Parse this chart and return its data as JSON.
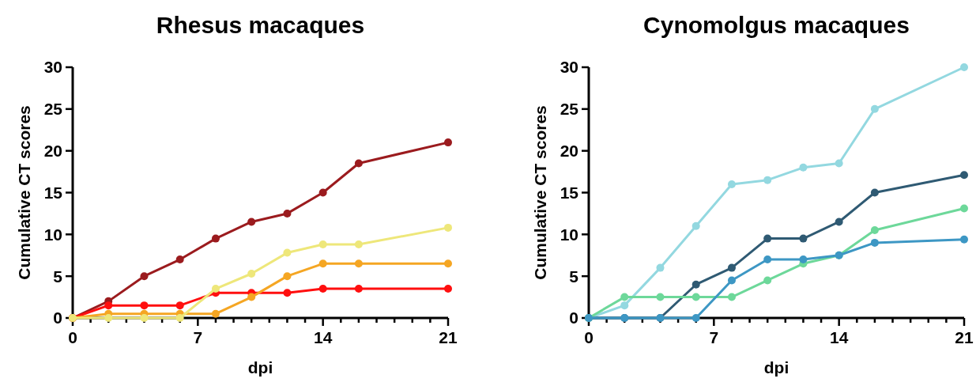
{
  "chart_data": [
    {
      "type": "line",
      "title": "Rhesus macaques",
      "xlabel": "dpi",
      "ylabel": "Cumulative CT scores",
      "x": [
        0,
        2,
        4,
        6,
        8,
        10,
        12,
        14,
        16,
        21
      ],
      "xlim": [
        0,
        21
      ],
      "xticks": [
        0,
        {
          "value": 1,
          "label": null
        },
        {
          "value": 2,
          "label": null
        },
        {
          "value": 3,
          "label": null
        },
        {
          "value": 4,
          "label": null
        },
        {
          "value": 5,
          "label": null
        },
        {
          "value": 6,
          "label": null
        },
        7,
        {
          "value": 8,
          "label": null
        },
        {
          "value": 9,
          "label": null
        },
        {
          "value": 10,
          "label": null
        },
        {
          "value": 11,
          "label": null
        },
        {
          "value": 12,
          "label": null
        },
        {
          "value": 13,
          "label": null
        },
        14,
        {
          "value": 15,
          "label": null
        },
        {
          "value": 16,
          "label": null
        },
        {
          "value": 17,
          "label": null
        },
        {
          "value": 18,
          "label": null
        },
        {
          "value": 19,
          "label": null
        },
        {
          "value": 20,
          "label": null
        },
        21
      ],
      "ylim": [
        0,
        30
      ],
      "yticks": [
        0,
        5,
        10,
        15,
        20,
        25,
        30
      ],
      "marker": "circle",
      "line_style": "solid",
      "series": [
        {
          "color": "#9b1b1e",
          "values": [
            0,
            2,
            5,
            7,
            9.5,
            11.5,
            12.5,
            15,
            18.5,
            21
          ]
        },
        {
          "color": "#ff0f0f",
          "values": [
            0,
            1.5,
            1.5,
            1.5,
            3,
            3,
            3,
            3.5,
            3.5,
            3.5
          ]
        },
        {
          "color": "#f5a623",
          "values": [
            0,
            0.5,
            0.5,
            0.5,
            0.5,
            2.5,
            5,
            6.5,
            6.5,
            6.5
          ]
        },
        {
          "color": "#eee77a",
          "values": [
            0,
            0,
            0,
            0,
            3.5,
            5.3,
            7.8,
            8.8,
            8.8,
            10.8
          ]
        }
      ]
    },
    {
      "type": "line",
      "title": "Cynomolgus macaques",
      "xlabel": "dpi",
      "ylabel": "Cumulative CT scores",
      "x": [
        0,
        2,
        4,
        6,
        8,
        10,
        12,
        14,
        16,
        21
      ],
      "xlim": [
        0,
        21
      ],
      "xticks": [
        0,
        {
          "value": 1,
          "label": null
        },
        {
          "value": 2,
          "label": null
        },
        {
          "value": 3,
          "label": null
        },
        {
          "value": 4,
          "label": null
        },
        {
          "value": 5,
          "label": null
        },
        {
          "value": 6,
          "label": null
        },
        7,
        {
          "value": 8,
          "label": null
        },
        {
          "value": 9,
          "label": null
        },
        {
          "value": 10,
          "label": null
        },
        {
          "value": 11,
          "label": null
        },
        {
          "value": 12,
          "label": null
        },
        {
          "value": 13,
          "label": null
        },
        14,
        {
          "value": 15,
          "label": null
        },
        {
          "value": 16,
          "label": null
        },
        {
          "value": 17,
          "label": null
        },
        {
          "value": 18,
          "label": null
        },
        {
          "value": 19,
          "label": null
        },
        {
          "value": 20,
          "label": null
        },
        21
      ],
      "ylim": [
        0,
        30
      ],
      "yticks": [
        0,
        5,
        10,
        15,
        20,
        25,
        30
      ],
      "marker": "circle",
      "line_style": "solid",
      "series": [
        {
          "color": "#93d8e0",
          "values": [
            0,
            1.5,
            6,
            11,
            16,
            16.5,
            18,
            18.5,
            25,
            30
          ]
        },
        {
          "color": "#2f5a73",
          "values": [
            0,
            0,
            0,
            4,
            6,
            9.5,
            9.5,
            11.5,
            15,
            17.1
          ]
        },
        {
          "color": "#6dd89a",
          "values": [
            0,
            2.5,
            2.5,
            2.5,
            2.5,
            4.5,
            6.5,
            7.5,
            10.5,
            13.1
          ]
        },
        {
          "color": "#3d97c4",
          "values": [
            0,
            0,
            0,
            0,
            4.5,
            7,
            7,
            7.5,
            9,
            9.4
          ]
        }
      ]
    }
  ]
}
